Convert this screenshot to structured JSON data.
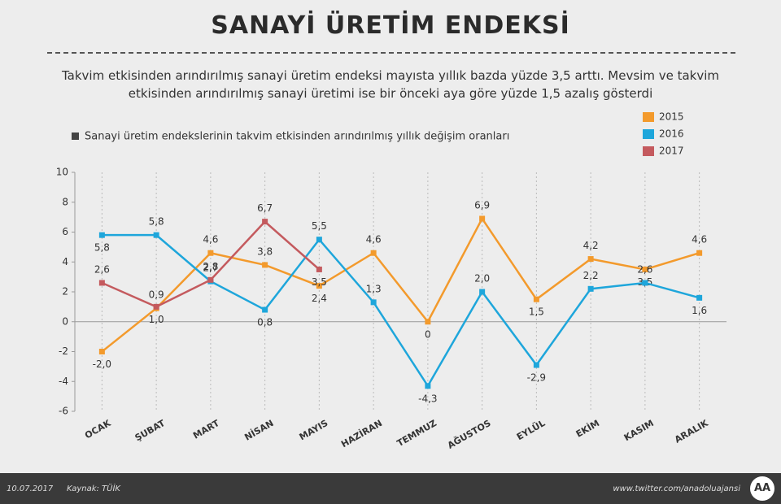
{
  "chart_data": {
    "type": "line",
    "title": "SANAYİ ÜRETİM ENDEKSİ",
    "subtitle": "Takvim etkisinden arındırılmış sanayi üretim endeksi mayısta yıllık bazda yüzde 3,5 arttı. Mevsim ve takvim etkisinden arındırılmış sanayi üretimi ise bir önceki aya göre yüzde 1,5 azalış gösterdi",
    "note": "Sanayi üretim endekslerinin takvim etkisinden arındırılmış yıllık değişim oranları",
    "categories": [
      "OCAK",
      "ŞUBAT",
      "MART",
      "NİSAN",
      "MAYIS",
      "HAZİRAN",
      "TEMMUZ",
      "AĞUSTOS",
      "EYLÜL",
      "EKİM",
      "KASIM",
      "ARALIK"
    ],
    "series": [
      {
        "name": "2015",
        "color": "#f39a2c",
        "values": [
          -2.0,
          0.9,
          4.6,
          3.8,
          2.4,
          4.6,
          0,
          6.9,
          1.5,
          4.2,
          3.5,
          4.6
        ],
        "value_labels": [
          "-2,0",
          "0,9",
          "4,6",
          "3,8",
          "2,4",
          "4,6",
          "0",
          "6,9",
          "1,5",
          "4,2",
          "3,5",
          "4,6"
        ]
      },
      {
        "name": "2016",
        "color": "#1ea6db",
        "values": [
          5.8,
          5.8,
          2.7,
          0.8,
          5.5,
          1.3,
          -4.3,
          2.0,
          -2.9,
          2.2,
          2.6,
          1.6
        ],
        "value_labels": [
          "5,8",
          "5,8",
          "2,7",
          "0,8",
          "5,5",
          "1,3",
          "-4,3",
          "2,0",
          "-2,9",
          "2,2",
          "2,6",
          "1,6"
        ]
      },
      {
        "name": "2017",
        "color": "#c45a5e",
        "values": [
          2.6,
          1.0,
          2.8,
          6.7,
          3.5,
          null,
          null,
          null,
          null,
          null,
          null,
          null
        ],
        "value_labels": [
          "2,6",
          "1,0",
          "2,8",
          "6,7",
          "3,5",
          null,
          null,
          null,
          null,
          null,
          null,
          null
        ]
      }
    ],
    "ylim": [
      -6,
      10
    ],
    "yticks": [
      -6,
      -4,
      -2,
      0,
      2,
      4,
      6,
      8,
      10
    ],
    "legend": "upper right"
  },
  "footer": {
    "date": "10.07.2017",
    "source": "Kaynak: TÜİK",
    "url": "www.twitter.com/anadoluajansi",
    "logo": "AA"
  }
}
